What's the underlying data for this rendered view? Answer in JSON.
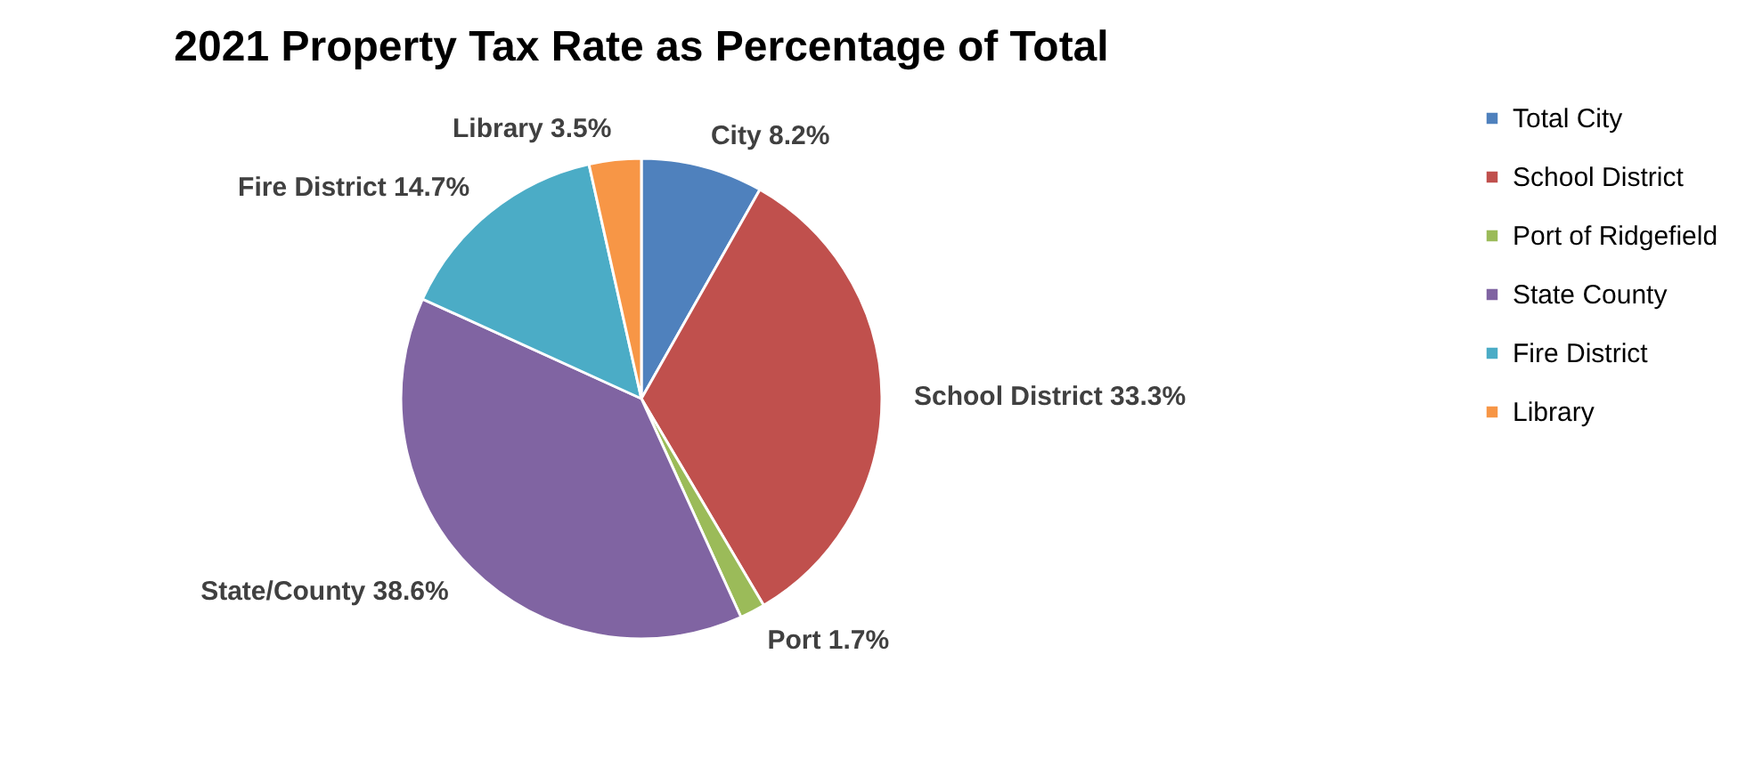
{
  "chart_data": {
    "type": "pie",
    "title": "2021 Property Tax Rate as Percentage of Total",
    "categories": [
      "Total City",
      "School District",
      "Port of Ridgefield",
      "State County",
      "Fire District",
      "Library"
    ],
    "values": [
      8.2,
      33.3,
      1.7,
      38.6,
      14.7,
      3.5
    ],
    "colors": [
      "#4f81bd",
      "#c0504d",
      "#9bbb59",
      "#8064a2",
      "#4bacc6",
      "#f79646"
    ],
    "value_labels": [
      "City 8.2%",
      "School District 33.3%",
      "Port 1.7%",
      "State/County 38.6%",
      "Fire District 14.7%",
      "Library 3.5%"
    ],
    "legend": "right"
  }
}
